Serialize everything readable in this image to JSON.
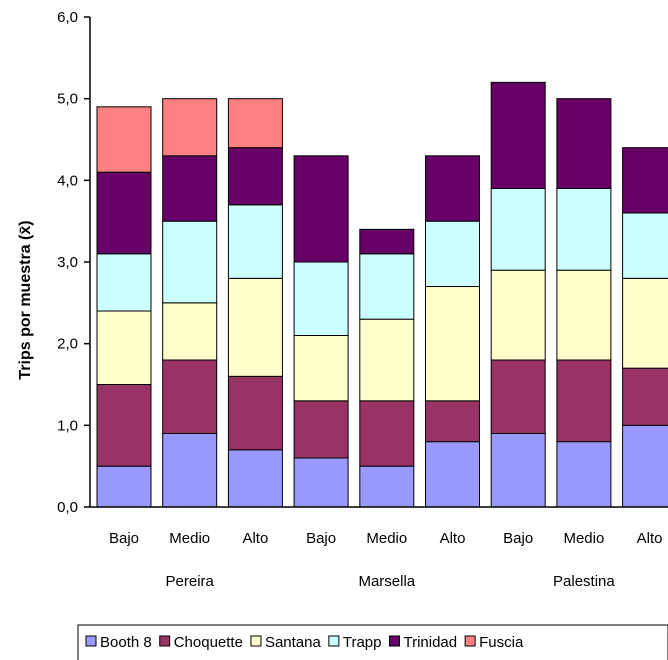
{
  "chart_data": {
    "type": "bar",
    "stacked": true,
    "ylabel": "Trips por muestra (x̄)",
    "ylim": [
      0,
      6
    ],
    "yticks": [
      "0,0",
      "1,0",
      "2,0",
      "3,0",
      "4,0",
      "5,0",
      "6,0"
    ],
    "grid": false,
    "legend_placement": "bottom",
    "groups": [
      {
        "name": "Pereira",
        "categories": [
          "Bajo",
          "Medio",
          "Alto"
        ]
      },
      {
        "name": "Marsella",
        "categories": [
          "Bajo",
          "Medio",
          "Alto"
        ]
      },
      {
        "name": "Palestina",
        "categories": [
          "Bajo",
          "Medio",
          "Alto"
        ]
      }
    ],
    "series": [
      {
        "name": "Booth 8",
        "color": "#9999ff",
        "values": [
          0.5,
          0.9,
          0.7,
          0.6,
          0.5,
          0.8,
          0.9,
          0.8,
          1.0
        ]
      },
      {
        "name": "Choquette",
        "color": "#993366",
        "values": [
          1.0,
          0.9,
          0.9,
          0.7,
          0.8,
          0.5,
          0.9,
          1.0,
          0.7
        ]
      },
      {
        "name": "Santana",
        "color": "#ffffcc",
        "values": [
          0.9,
          0.7,
          1.2,
          0.8,
          1.0,
          1.4,
          1.1,
          1.1,
          1.1
        ]
      },
      {
        "name": "Trapp",
        "color": "#ccffff",
        "values": [
          0.7,
          1.0,
          0.9,
          0.9,
          0.8,
          0.8,
          1.0,
          1.0,
          0.8
        ]
      },
      {
        "name": "Trinidad",
        "color": "#660066",
        "values": [
          1.0,
          0.8,
          0.7,
          1.3,
          0.3,
          0.8,
          1.3,
          1.1,
          0.8
        ]
      },
      {
        "name": "Fuscia",
        "color": "#ff8080",
        "values": [
          0.8,
          0.7,
          0.6,
          0,
          0,
          0,
          0,
          0,
          0
        ]
      }
    ]
  }
}
